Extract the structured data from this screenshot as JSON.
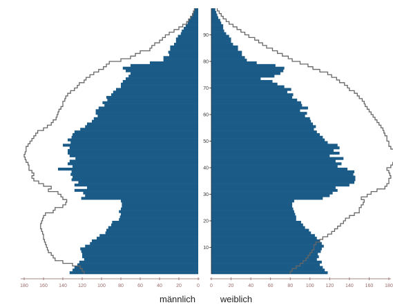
{
  "chart_data": {
    "type": "bar",
    "orientation": "horizontal-population-pyramid",
    "sides": [
      {
        "key": "male",
        "label": "männlich"
      },
      {
        "key": "female",
        "label": "weiblich"
      }
    ],
    "x_ticks_left": [
      "180",
      "160",
      "140",
      "120",
      "100",
      "80",
      "60",
      "40",
      "20",
      "0"
    ],
    "x_ticks_right": [
      "0",
      "20",
      "40",
      "60",
      "80",
      "100",
      "120",
      "140",
      "160",
      "180"
    ],
    "age_ticks": [
      "10",
      "20",
      "30",
      "40",
      "50",
      "60",
      "70",
      "80",
      "90"
    ],
    "xlim": [
      0,
      180
    ],
    "ylim": [
      0,
      100
    ],
    "colors": {
      "filled": "#1b5b88",
      "outline": "#666666",
      "axis": "#8a6060"
    },
    "series": [
      {
        "name": "",
        "style": "filled",
        "male": [
          133,
          130,
          128,
          125,
          123,
          118,
          120,
          120,
          121,
          122,
          117,
          112,
          110,
          105,
          102,
          96,
          95,
          93,
          90,
          89,
          82,
          81,
          80,
          82,
          80,
          79,
          79,
          80,
          121,
          117,
          119,
          128,
          115,
          128,
          124,
          131,
          130,
          132,
          131,
          145,
          130,
          135,
          133,
          127,
          133,
          135,
          135,
          133,
          140,
          132,
          135,
          131,
          130,
          128,
          122,
          117,
          115,
          110,
          108,
          104,
          106,
          106,
          103,
          97,
          99,
          94,
          95,
          90,
          88,
          85,
          80,
          80,
          78,
          75,
          72,
          70,
          75,
          78,
          70,
          50,
          36,
          36,
          30,
          31,
          29,
          29,
          25,
          23,
          23,
          21,
          18,
          17,
          15,
          13,
          11,
          10,
          8,
          6,
          5,
          4
        ],
        "female": [
          118,
          115,
          113,
          110,
          112,
          107,
          109,
          108,
          111,
          112,
          114,
          112,
          110,
          107,
          105,
          101,
          99,
          95,
          93,
          91,
          86,
          86,
          85,
          84,
          83,
          82,
          82,
          84,
          113,
          120,
          123,
          128,
          126,
          140,
          145,
          146,
          146,
          144,
          145,
          138,
          128,
          132,
          126,
          134,
          120,
          130,
          124,
          130,
          128,
          118,
          115,
          113,
          110,
          107,
          104,
          106,
          103,
          101,
          100,
          95,
          97,
          90,
          98,
          92,
          91,
          87,
          82,
          83,
          77,
          81,
          74,
          67,
          62,
          50,
          64,
          70,
          73,
          74,
          65,
          46,
          36,
          34,
          31,
          31,
          27,
          27,
          22,
          20,
          20,
          18,
          15,
          13,
          12,
          12,
          10,
          9,
          7,
          6,
          5,
          4
        ]
      },
      {
        "name": "",
        "style": "outline",
        "male": [
          118,
          120,
          122,
          130,
          140,
          148,
          150,
          152,
          155,
          156,
          157,
          158,
          159,
          160,
          160,
          161,
          162,
          163,
          163,
          162,
          161,
          160,
          158,
          150,
          148,
          140,
          137,
          136,
          140,
          142,
          145,
          155,
          152,
          160,
          165,
          170,
          172,
          170,
          172,
          175,
          175,
          176,
          178,
          179,
          180,
          179,
          178,
          178,
          176,
          174,
          172,
          170,
          168,
          166,
          160,
          156,
          152,
          150,
          147,
          146,
          145,
          144,
          142,
          140,
          140,
          138,
          137,
          135,
          132,
          128,
          125,
          123,
          118,
          116,
          112,
          108,
          103,
          98,
          95,
          92,
          80,
          70,
          65,
          60,
          50,
          48,
          45,
          40,
          37,
          34,
          30,
          25,
          20,
          16,
          12,
          10,
          8,
          6,
          5,
          4
        ],
        "female": [
          80,
          82,
          86,
          90,
          93,
          96,
          98,
          100,
          102,
          104,
          104,
          106,
          110,
          113,
          118,
          122,
          125,
          128,
          131,
          134,
          136,
          140,
          145,
          150,
          150,
          152,
          154,
          155,
          152,
          158,
          162,
          168,
          176,
          178,
          180,
          180,
          182,
          181,
          180,
          178,
          182,
          184,
          186,
          187,
          188,
          187,
          185,
          182,
          180,
          180,
          178,
          178,
          176,
          175,
          174,
          172,
          170,
          168,
          166,
          164,
          162,
          160,
          158,
          156,
          155,
          153,
          150,
          148,
          145,
          140,
          138,
          135,
          130,
          127,
          122,
          118,
          110,
          103,
          98,
          90,
          82,
          78,
          72,
          67,
          62,
          56,
          52,
          48,
          44,
          38,
          34,
          30,
          26,
          22,
          18,
          15,
          12,
          10,
          8,
          6
        ]
      }
    ]
  },
  "axis_labels": {
    "left": "männlich",
    "right": "weiblich"
  }
}
